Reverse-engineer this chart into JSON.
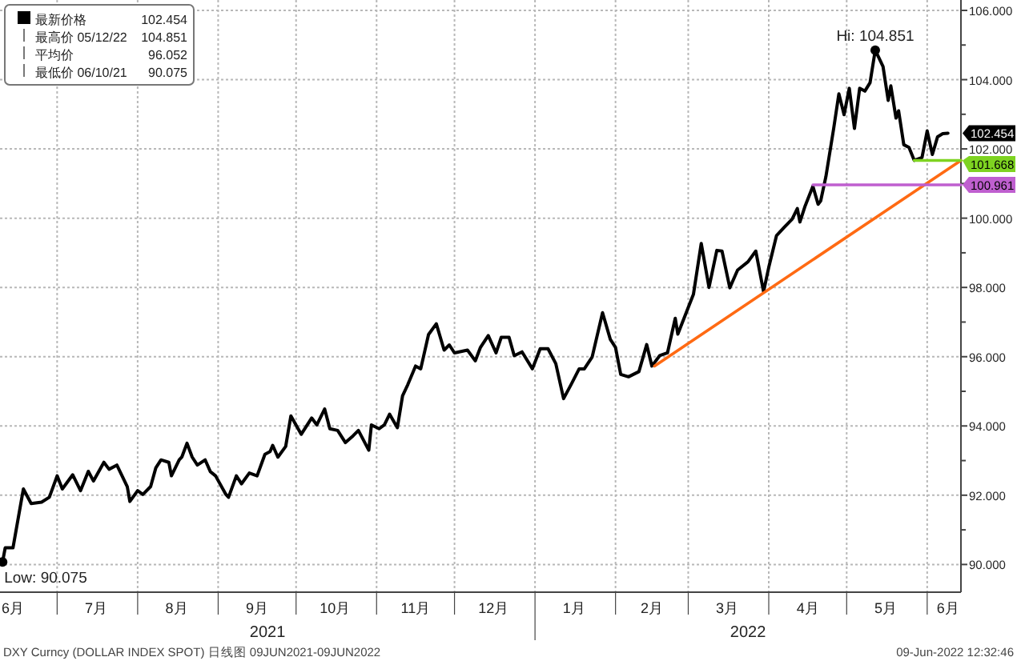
{
  "chart_data": {
    "type": "line",
    "xlim": [
      "2021-06-09",
      "2022-06-14"
    ],
    "ylim": [
      89.2,
      106.3
    ],
    "xticks": [
      {
        "value": "2021-07-01",
        "label": null
      },
      {
        "value": "2021-08-01",
        "label": null
      },
      {
        "value": "2021-09-01",
        "label": null
      },
      {
        "value": "2021-10-01",
        "label": null
      },
      {
        "value": "2021-11-01",
        "label": null
      },
      {
        "value": "2021-12-01",
        "label": null
      },
      {
        "value": "2022-01-01",
        "label": null
      },
      {
        "value": "2022-02-01",
        "label": null
      },
      {
        "value": "2022-03-01",
        "label": null
      },
      {
        "value": "2022-04-01",
        "label": null
      },
      {
        "value": "2022-05-01",
        "label": null
      },
      {
        "value": "2022-06-01",
        "label": null
      },
      {
        "value": "2021-06-12",
        "label": "6月"
      },
      {
        "value": "2021-07-16",
        "label": "7月"
      },
      {
        "value": "2021-08-16",
        "label": "8月"
      },
      {
        "value": "2021-09-16",
        "label": "9月"
      },
      {
        "value": "2021-10-16",
        "label": "10月"
      },
      {
        "value": "2021-11-16",
        "label": "11月"
      },
      {
        "value": "2021-12-16",
        "label": "12月"
      },
      {
        "value": "2022-01-16",
        "label": "1月"
      },
      {
        "value": "2022-02-15",
        "label": "2月"
      },
      {
        "value": "2022-03-16",
        "label": "3月"
      },
      {
        "value": "2022-04-16",
        "label": "4月"
      },
      {
        "value": "2022-05-16",
        "label": "5月"
      },
      {
        "value": "2022-06-09",
        "label": "6月"
      }
    ],
    "yticks": [
      {
        "value": 90,
        "label": "90.000"
      },
      {
        "value": 91,
        "label": null
      },
      {
        "value": 92,
        "label": "92.000"
      },
      {
        "value": 93,
        "label": null
      },
      {
        "value": 94,
        "label": "94.000"
      },
      {
        "value": 95,
        "label": null
      },
      {
        "value": 96,
        "label": "96.000"
      },
      {
        "value": 97,
        "label": null
      },
      {
        "value": 98,
        "label": "98.000"
      },
      {
        "value": 99,
        "label": null
      },
      {
        "value": 100,
        "label": "100.000"
      },
      {
        "value": 101,
        "label": null
      },
      {
        "value": 102,
        "label": "102.000"
      },
      {
        "value": 103,
        "label": null
      },
      {
        "value": 104,
        "label": "104.000"
      },
      {
        "value": 105,
        "label": null
      },
      {
        "value": 106,
        "label": "106.000"
      }
    ],
    "grid": true,
    "legend": "top left",
    "marker": "none",
    "line_style": "solid",
    "series": [
      {
        "name": "最新价格",
        "color": "#000000",
        "x": [
          "2021-06-10",
          "2021-06-11",
          "2021-06-14",
          "2021-06-18",
          "2021-06-21",
          "2021-06-25",
          "2021-06-28",
          "2021-07-01",
          "2021-07-03",
          "2021-07-07",
          "2021-07-10",
          "2021-07-13",
          "2021-07-15",
          "2021-07-19",
          "2021-07-21",
          "2021-07-24",
          "2021-07-28",
          "2021-07-29",
          "2021-08-01",
          "2021-08-03",
          "2021-08-06",
          "2021-08-08",
          "2021-08-10",
          "2021-08-13",
          "2021-08-14",
          "2021-08-17",
          "2021-08-18",
          "2021-08-20",
          "2021-08-22",
          "2021-08-24",
          "2021-08-27",
          "2021-08-29",
          "2021-08-31",
          "2021-09-04",
          "2021-09-05",
          "2021-09-08",
          "2021-09-10",
          "2021-09-13",
          "2021-09-16",
          "2021-09-19",
          "2021-09-21",
          "2021-09-22",
          "2021-09-24",
          "2021-09-27",
          "2021-09-29",
          "2021-10-03",
          "2021-10-07",
          "2021-10-09",
          "2021-10-12",
          "2021-10-14",
          "2021-10-17",
          "2021-10-20",
          "2021-10-23",
          "2021-10-25",
          "2021-10-29",
          "2021-10-30",
          "2021-11-02",
          "2021-11-04",
          "2021-11-06",
          "2021-11-09",
          "2021-11-11",
          "2021-11-13",
          "2021-11-16",
          "2021-11-18",
          "2021-11-21",
          "2021-11-24",
          "2021-11-27",
          "2021-11-29",
          "2021-12-01",
          "2021-12-06",
          "2021-12-09",
          "2021-12-11",
          "2021-12-14",
          "2021-12-17",
          "2021-12-19",
          "2021-12-22",
          "2021-12-24",
          "2021-12-27",
          "2021-12-31",
          "2022-01-03",
          "2022-01-06",
          "2022-01-09",
          "2022-01-12",
          "2022-01-15",
          "2022-01-18",
          "2022-01-20",
          "2022-01-23",
          "2022-01-27",
          "2022-01-30",
          "2022-02-01",
          "2022-02-03",
          "2022-02-06",
          "2022-02-10",
          "2022-02-13",
          "2022-02-15",
          "2022-02-18",
          "2022-02-21",
          "2022-02-24",
          "2022-02-25",
          "2022-03-01",
          "2022-03-03",
          "2022-03-06",
          "2022-03-09",
          "2022-03-12",
          "2022-03-14",
          "2022-03-17",
          "2022-03-20",
          "2022-03-24",
          "2022-03-27",
          "2022-03-30",
          "2022-04-01",
          "2022-04-04",
          "2022-04-07",
          "2022-04-10",
          "2022-04-12",
          "2022-04-13",
          "2022-04-15",
          "2022-04-18",
          "2022-04-20",
          "2022-04-21",
          "2022-04-23",
          "2022-04-26",
          "2022-04-28",
          "2022-04-30",
          "2022-05-02",
          "2022-05-04",
          "2022-05-06",
          "2022-05-08",
          "2022-05-10",
          "2022-05-12",
          "2022-05-15",
          "2022-05-17",
          "2022-05-18",
          "2022-05-20",
          "2022-05-21",
          "2022-05-23",
          "2022-05-25",
          "2022-05-27",
          "2022-05-30",
          "2022-06-01",
          "2022-06-03",
          "2022-06-05",
          "2022-06-07",
          "2022-06-09"
        ],
        "values": [
          90.075,
          90.48,
          90.48,
          92.18,
          91.76,
          91.8,
          91.94,
          92.56,
          92.18,
          92.59,
          92.13,
          92.69,
          92.41,
          92.95,
          92.75,
          92.87,
          92.25,
          91.82,
          92.13,
          92.02,
          92.25,
          92.79,
          93.02,
          92.95,
          92.56,
          93.02,
          93.1,
          93.5,
          93.1,
          92.87,
          93.02,
          92.68,
          92.56,
          92.02,
          91.94,
          92.56,
          92.33,
          92.64,
          92.56,
          93.18,
          93.26,
          93.44,
          93.1,
          93.41,
          94.29,
          93.76,
          94.23,
          94.03,
          94.49,
          93.92,
          93.87,
          93.52,
          93.72,
          93.87,
          93.3,
          94.03,
          93.92,
          94.03,
          94.34,
          93.95,
          94.87,
          95.19,
          95.73,
          95.65,
          96.64,
          96.95,
          96.19,
          96.34,
          96.11,
          96.19,
          95.88,
          96.27,
          96.61,
          96.11,
          96.56,
          96.56,
          96.03,
          96.14,
          95.65,
          96.23,
          96.23,
          95.8,
          94.79,
          95.21,
          95.65,
          95.65,
          95.99,
          97.27,
          96.5,
          96.27,
          95.49,
          95.42,
          95.57,
          96.35,
          95.73,
          96.03,
          96.11,
          97.11,
          96.65,
          97.42,
          97.8,
          99.27,
          98.0,
          99.07,
          99.05,
          97.99,
          98.5,
          98.74,
          99.05,
          97.88,
          98.58,
          99.5,
          99.74,
          99.97,
          100.28,
          99.89,
          100.35,
          100.92,
          100.4,
          100.5,
          101.2,
          102.59,
          103.59,
          102.99,
          103.75,
          102.59,
          103.75,
          103.67,
          103.91,
          104.851,
          104.38,
          103.4,
          103.82,
          102.89,
          103.1,
          102.12,
          102.04,
          101.67,
          101.75,
          102.52,
          101.84,
          102.35,
          102.44,
          102.454
        ],
        "value_labels": [
          null,
          null,
          null,
          null,
          null,
          null,
          null,
          null,
          null,
          null,
          null,
          null,
          null,
          null,
          null,
          null,
          null,
          null,
          null,
          null,
          null,
          null,
          null,
          null,
          null,
          null,
          null,
          null,
          null,
          null,
          null,
          null,
          null,
          null,
          null,
          null,
          null,
          null,
          null,
          null,
          null,
          null,
          null,
          null,
          null,
          null,
          null,
          null,
          null,
          null,
          null,
          null,
          null,
          null,
          null,
          null,
          null,
          null,
          null,
          null,
          null,
          null,
          null,
          null,
          null,
          null,
          null,
          null,
          null,
          null,
          null,
          null,
          null,
          null,
          null,
          null,
          null,
          null,
          null,
          null,
          null,
          null,
          null,
          null,
          null,
          null,
          null,
          null,
          null,
          null,
          null,
          null,
          null,
          null,
          null,
          null,
          null,
          null,
          null,
          null,
          null,
          null,
          null,
          null,
          null,
          null,
          null,
          null,
          null,
          null,
          null,
          null,
          null,
          null,
          null,
          null,
          null,
          null,
          null,
          null,
          null,
          null,
          null,
          null,
          null,
          null,
          null,
          null,
          null,
          null,
          null,
          null,
          null,
          null,
          null,
          null,
          null,
          null,
          null,
          null,
          null,
          null,
          null,
          "102.454"
        ]
      },
      {
        "type": "line",
        "color": "#ff6a13",
        "x": [
          "2022-02-16",
          "2022-06-14"
        ],
        "values": [
          95.73,
          101.668
        ]
      },
      {
        "type": "line",
        "color": "#7ed321",
        "x": [
          "2022-05-27",
          "2022-06-14"
        ],
        "values": [
          101.668,
          101.668
        ],
        "value_labels": [
          null,
          "101.668"
        ]
      },
      {
        "type": "line",
        "color": "#bf5fcf",
        "x": [
          "2022-04-18",
          "2022-06-14"
        ],
        "values": [
          100.961,
          100.961
        ],
        "value_labels": [
          null,
          "100.961"
        ]
      }
    ],
    "annotations": [
      "2021",
      "2022",
      "DXY Curncy (DOLLAR INDEX SPOT)  日线图 09JUN2021-09JUN2022",
      "09-Jun-2022 12:32:46",
      "最高价 05/12/22 104.851",
      "平均价 96.052",
      "最低价 06/10/21 90.075",
      {
        "text": "Hi: 104.851",
        "x": "2022-05-12",
        "y": 104.851
      },
      {
        "text": "Low: 90.075",
        "x": "2021-06-10",
        "y": 90.075
      }
    ]
  }
}
